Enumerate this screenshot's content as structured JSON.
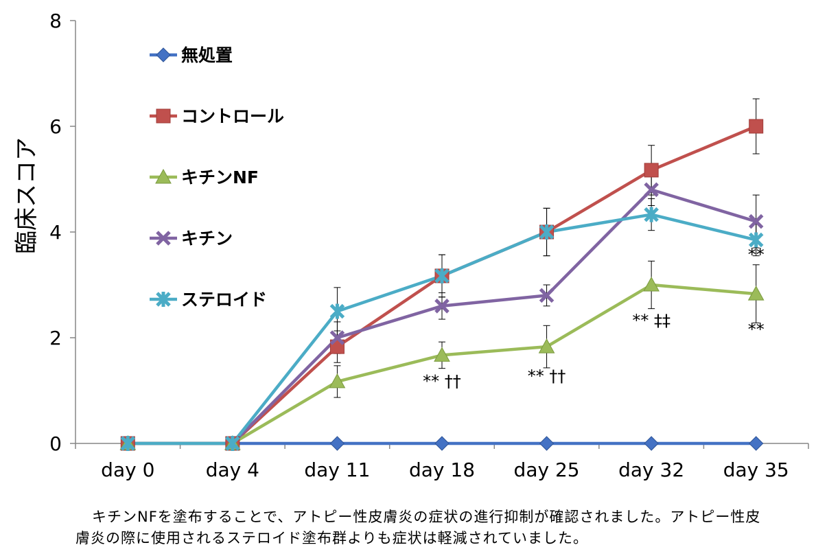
{
  "chart_data": {
    "type": "line",
    "title": "",
    "xlabel": "",
    "ylabel": "臨床スコア",
    "categories": [
      "day 0",
      "day 4",
      "day 11",
      "day 18",
      "day 25",
      "day 32",
      "day 35"
    ],
    "ylim": [
      0,
      8
    ],
    "yticks": [
      0,
      2,
      4,
      6,
      8
    ],
    "grid": false,
    "legend_position": "top-left",
    "series": [
      {
        "name": "無処置",
        "color": "#4472c4",
        "marker": "diamond",
        "values": [
          0,
          0,
          0,
          0,
          0,
          0,
          0
        ],
        "err": [
          0,
          0,
          0,
          0,
          0,
          0,
          0
        ]
      },
      {
        "name": "コントロール",
        "color": "#c0504d",
        "marker": "square",
        "values": [
          0,
          0,
          1.83,
          3.17,
          4.0,
          5.17,
          6.0
        ],
        "err": [
          0,
          0,
          0.3,
          0.4,
          0.45,
          0.47,
          0.52
        ]
      },
      {
        "name": "キチンNF",
        "color": "#9bbb59",
        "marker": "triangle",
        "values": [
          0,
          0,
          1.17,
          1.67,
          1.83,
          3.0,
          2.83
        ],
        "err": [
          0,
          0,
          0.3,
          0.25,
          0.4,
          0.45,
          0.55
        ]
      },
      {
        "name": "キチン",
        "color": "#8064a2",
        "marker": "x",
        "values": [
          0,
          0,
          2.0,
          2.6,
          2.8,
          4.8,
          4.2
        ],
        "err": [
          0,
          0,
          0.3,
          0.25,
          0.2,
          0.3,
          0.5
        ]
      },
      {
        "name": "ステロイド",
        "color": "#4bacc6",
        "marker": "star",
        "values": [
          0,
          0,
          2.5,
          3.17,
          4.0,
          4.33,
          3.85
        ],
        "err": [
          0,
          0,
          0.45,
          0.4,
          0.45,
          0.3,
          0.3
        ]
      }
    ],
    "annotations": [
      {
        "text": "** ††",
        "x": "day 18",
        "y": 1.07
      },
      {
        "text": "** ††",
        "x": "day 25",
        "y": 1.17
      },
      {
        "text": "** ‡‡",
        "x": "day 32",
        "y": 2.22
      },
      {
        "text": "**",
        "x": "day 35",
        "y": 3.47
      },
      {
        "text": "**",
        "x": "day 35",
        "y": 2.05
      }
    ]
  },
  "caption": {
    "line1": "キチンNFを塗布することで、アトピー性皮膚炎の症状の進行抑制が確認されました。アトピー性皮",
    "line2": "膚炎の際に使用されるステロイド塗布群よりも症状は軽減されていました。"
  }
}
